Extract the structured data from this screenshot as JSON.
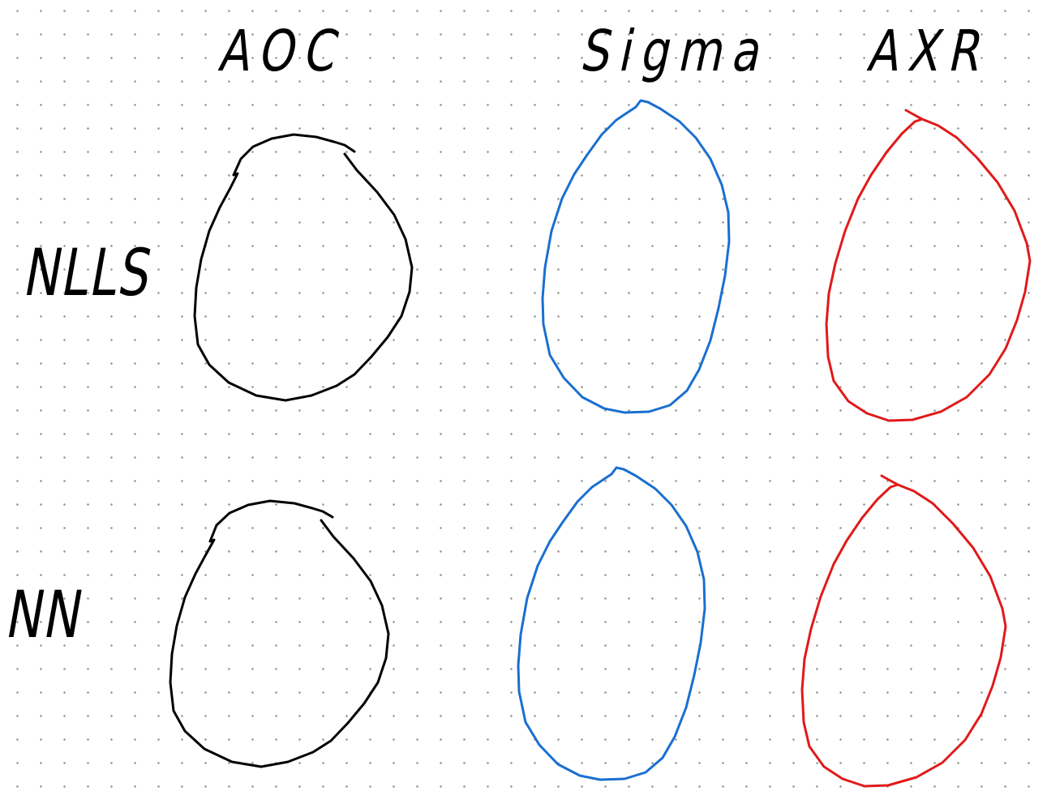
{
  "columns": [
    {
      "label": "AOC",
      "color": "#000000"
    },
    {
      "label": "Sigma",
      "color": "#1a6fd0"
    },
    {
      "label": "AXR",
      "color": "#e01a1a"
    }
  ],
  "rows": [
    {
      "label": "NLLS"
    },
    {
      "label": "NN"
    }
  ]
}
